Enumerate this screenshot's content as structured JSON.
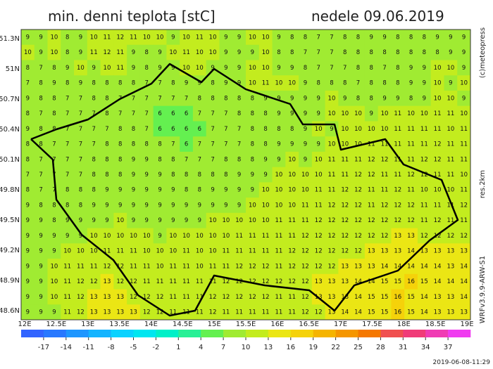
{
  "header": {
    "title": "min. denni teplota [stC]",
    "date": "nedele 09.06.2019"
  },
  "map": {
    "lat_labels": [
      "51.3N",
      "51N",
      "50.7N",
      "50.4N",
      "50.1N",
      "49.8N",
      "49.5N",
      "49.2N",
      "48.9N",
      "48.6N"
    ],
    "lon_labels": [
      "12E",
      "12.5E",
      "13E",
      "13.5E",
      "14E",
      "14.5E",
      "15E",
      "15.5E",
      "16E",
      "16.5E",
      "17E",
      "17.5E",
      "18E",
      "18.5E",
      "19E"
    ],
    "grid": [
      [
        9,
        9,
        10,
        8,
        9,
        10,
        11,
        12,
        11,
        10,
        10,
        9,
        10,
        11,
        10,
        9,
        9,
        10,
        10,
        9,
        8,
        8,
        7,
        7,
        8,
        8,
        9,
        9,
        8,
        8,
        8,
        9,
        9,
        9
      ],
      [
        10,
        9,
        10,
        8,
        9,
        11,
        12,
        11,
        9,
        8,
        9,
        10,
        11,
        10,
        10,
        9,
        9,
        9,
        10,
        8,
        8,
        7,
        7,
        7,
        8,
        8,
        8,
        8,
        8,
        8,
        8,
        8,
        9,
        9
      ],
      [
        8,
        7,
        8,
        9,
        10,
        9,
        10,
        11,
        9,
        8,
        9,
        9,
        10,
        10,
        9,
        9,
        9,
        10,
        10,
        9,
        9,
        8,
        7,
        7,
        7,
        8,
        8,
        7,
        8,
        9,
        9,
        10,
        10,
        9
      ],
      [
        7,
        8,
        9,
        8,
        9,
        8,
        8,
        8,
        8,
        7,
        7,
        8,
        9,
        9,
        8,
        9,
        9,
        10,
        11,
        10,
        10,
        9,
        8,
        8,
        8,
        7,
        8,
        8,
        8,
        9,
        9,
        10,
        9,
        10
      ],
      [
        9,
        8,
        8,
        7,
        7,
        8,
        8,
        7,
        7,
        7,
        7,
        7,
        7,
        8,
        8,
        8,
        8,
        8,
        9,
        9,
        9,
        9,
        9,
        10,
        9,
        8,
        8,
        9,
        9,
        8,
        9,
        10,
        10,
        9
      ],
      [
        8,
        7,
        8,
        7,
        7,
        7,
        8,
        7,
        7,
        7,
        6,
        6,
        6,
        7,
        7,
        7,
        8,
        8,
        8,
        9,
        9,
        9,
        9,
        10,
        10,
        10,
        9,
        10,
        11,
        10,
        10,
        11,
        11,
        10
      ],
      [
        9,
        8,
        8,
        7,
        7,
        7,
        7,
        8,
        8,
        7,
        6,
        6,
        6,
        6,
        7,
        7,
        7,
        8,
        8,
        8,
        8,
        9,
        10,
        9,
        10,
        10,
        10,
        10,
        11,
        11,
        11,
        11,
        10,
        11
      ],
      [
        8,
        8,
        7,
        7,
        7,
        7,
        8,
        8,
        8,
        8,
        8,
        7,
        6,
        7,
        7,
        7,
        7,
        8,
        8,
        9,
        9,
        9,
        9,
        10,
        10,
        10,
        11,
        11,
        11,
        11,
        11,
        12,
        11,
        11
      ],
      [
        8,
        7,
        7,
        7,
        7,
        8,
        8,
        8,
        9,
        9,
        8,
        8,
        7,
        7,
        7,
        8,
        8,
        8,
        9,
        9,
        10,
        9,
        10,
        11,
        11,
        11,
        12,
        12,
        11,
        11,
        12,
        12,
        11,
        11
      ],
      [
        7,
        7,
        7,
        7,
        7,
        8,
        8,
        8,
        9,
        9,
        9,
        8,
        8,
        8,
        8,
        8,
        9,
        9,
        9,
        10,
        10,
        10,
        10,
        11,
        11,
        12,
        12,
        11,
        11,
        12,
        12,
        11,
        11,
        10
      ],
      [
        8,
        7,
        7,
        8,
        8,
        8,
        9,
        9,
        9,
        9,
        9,
        9,
        8,
        8,
        9,
        9,
        9,
        9,
        10,
        10,
        10,
        10,
        11,
        11,
        12,
        12,
        11,
        11,
        12,
        11,
        10,
        10,
        10,
        11
      ],
      [
        9,
        8,
        8,
        8,
        8,
        9,
        9,
        9,
        9,
        9,
        9,
        9,
        9,
        9,
        9,
        9,
        9,
        10,
        10,
        10,
        10,
        11,
        11,
        12,
        12,
        12,
        11,
        12,
        12,
        12,
        11,
        11,
        11,
        12
      ],
      [
        9,
        9,
        8,
        9,
        9,
        9,
        9,
        10,
        9,
        9,
        9,
        9,
        9,
        9,
        10,
        10,
        10,
        10,
        10,
        11,
        11,
        11,
        12,
        12,
        12,
        12,
        12,
        12,
        12,
        12,
        11,
        12,
        11,
        11
      ],
      [
        9,
        9,
        9,
        9,
        9,
        10,
        10,
        10,
        10,
        10,
        9,
        10,
        10,
        10,
        10,
        10,
        11,
        11,
        11,
        11,
        11,
        12,
        12,
        12,
        12,
        12,
        12,
        12,
        13,
        13,
        12,
        12,
        12,
        12
      ],
      [
        9,
        9,
        9,
        10,
        10,
        10,
        11,
        11,
        11,
        10,
        10,
        10,
        11,
        10,
        10,
        11,
        11,
        11,
        11,
        11,
        12,
        12,
        12,
        12,
        12,
        12,
        13,
        13,
        13,
        14,
        13,
        13,
        13,
        13
      ],
      [
        9,
        9,
        10,
        11,
        11,
        11,
        12,
        12,
        11,
        11,
        10,
        11,
        11,
        10,
        11,
        11,
        12,
        12,
        12,
        11,
        12,
        12,
        12,
        12,
        13,
        13,
        13,
        14,
        14,
        14,
        14,
        14,
        13,
        14
      ],
      [
        9,
        9,
        10,
        11,
        12,
        12,
        13,
        12,
        12,
        11,
        11,
        11,
        11,
        11,
        11,
        12,
        12,
        12,
        12,
        12,
        12,
        12,
        13,
        13,
        13,
        14,
        14,
        15,
        15,
        16,
        15,
        14,
        14,
        14
      ],
      [
        9,
        9,
        10,
        11,
        12,
        13,
        13,
        13,
        12,
        12,
        12,
        11,
        11,
        11,
        12,
        12,
        12,
        12,
        12,
        11,
        11,
        12,
        13,
        13,
        13,
        14,
        15,
        15,
        16,
        15,
        14,
        13,
        13,
        14
      ],
      [
        9,
        9,
        9,
        11,
        12,
        13,
        13,
        13,
        13,
        12,
        12,
        11,
        11,
        11,
        12,
        11,
        11,
        11,
        11,
        11,
        11,
        12,
        12,
        13,
        14,
        14,
        15,
        15,
        16,
        15,
        14,
        13,
        13,
        13
      ]
    ]
  },
  "side": {
    "copyright": "(c)meteopress",
    "resolution": "res.2km",
    "model": "WRFv3.9.9-ARW-S1"
  },
  "colorbar": {
    "ticks": [
      -17,
      -14,
      -11,
      -8,
      -5,
      -2,
      1,
      4,
      7,
      10,
      13,
      16,
      19,
      22,
      25,
      28,
      31,
      34,
      37
    ],
    "colors": [
      "#3264ff",
      "#2878ff",
      "#1e96ff",
      "#14b4ff",
      "#0ad2ff",
      "#00e6f0",
      "#00f0c8",
      "#28f096",
      "#64f050",
      "#a0eb32",
      "#c3ec1e",
      "#ebe614",
      "#f5d20a",
      "#f5b400",
      "#f59600",
      "#f57800",
      "#f05050",
      "#f03c78",
      "#f03cb4",
      "#f03cf0"
    ]
  },
  "footer": {
    "timestamp": "2019-06-08-11:29"
  }
}
